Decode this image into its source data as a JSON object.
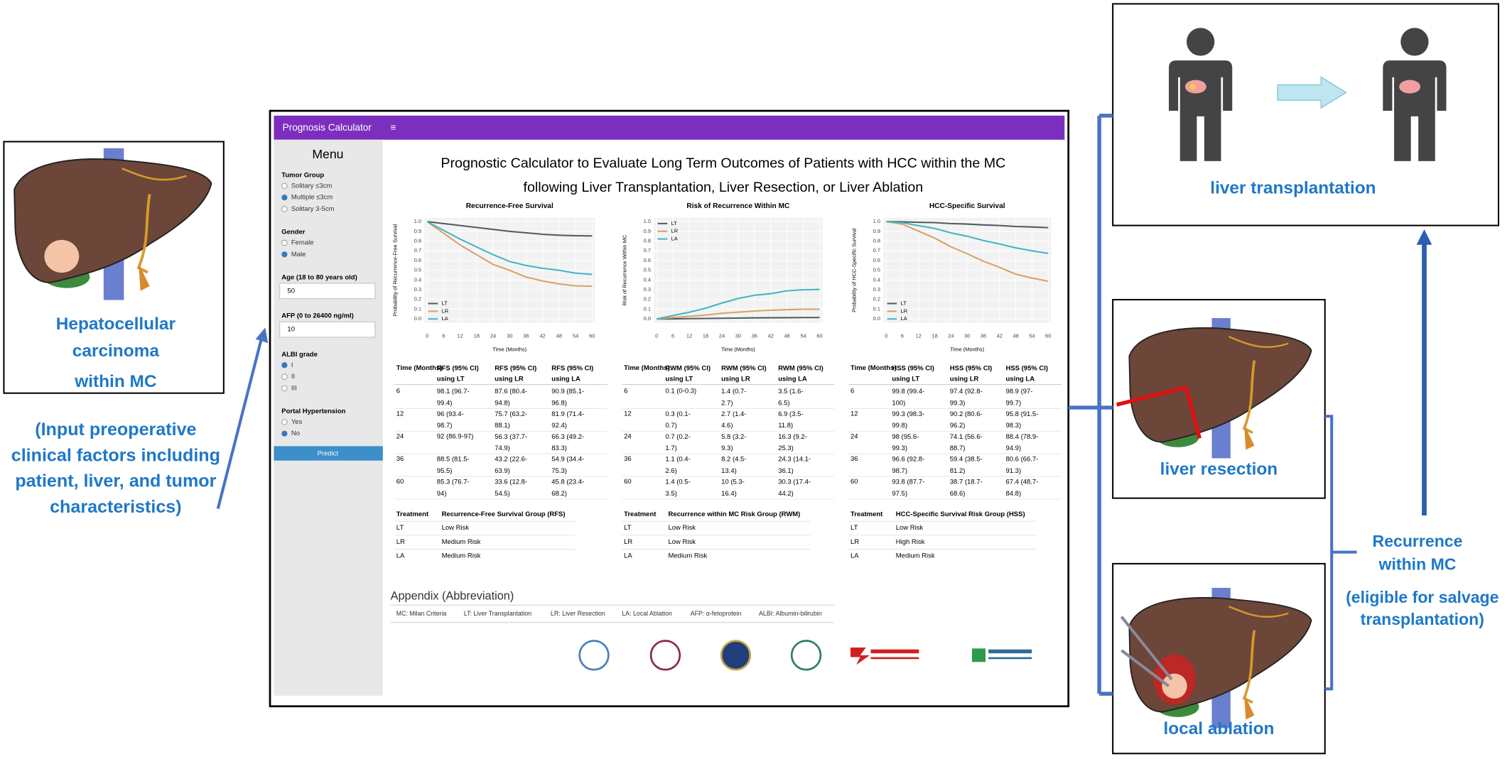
{
  "left_panel": {
    "caption": [
      "Hepatocellular",
      "carcinoma",
      "within MC"
    ],
    "note": [
      "(Input preoperative",
      "clinical factors including",
      "patient, liver, and tumor",
      "characteristics)"
    ]
  },
  "app": {
    "brand": "Prognosis Calculator",
    "menu_icon": "≡",
    "sidebar": {
      "menu": "Menu",
      "fields": [
        {
          "label": "Tumor Group",
          "options": [
            "Solitary ≤3cm",
            "Multiple ≤3cm",
            "Solitary 3-5cm"
          ],
          "selected": 1
        },
        {
          "label": "Gender",
          "options": [
            "Female",
            "Male"
          ],
          "selected": 1
        },
        {
          "label": "Age (18 to 80 years old)",
          "value": "50"
        },
        {
          "label": "AFP (0 to 26400 ng/ml)",
          "value": "10"
        },
        {
          "label": "ALBI grade",
          "options": [
            "I",
            "II",
            "III"
          ],
          "selected": 0
        },
        {
          "label": "Portal Hypertension",
          "options": [
            "Yes",
            "No"
          ],
          "selected": 1
        }
      ],
      "button": "Predict"
    },
    "title": [
      "Prognostic Calculator to Evaluate Long Term Outcomes of Patients with HCC within the MC",
      "following Liver Transplantation, Liver Resection, or Liver Ablation"
    ],
    "tables": [
      {
        "header": [
          "Time (Months)",
          "RFS (95% CI) using LT",
          "RFS (95% CI) using LR",
          "RFS (95% CI) using LA"
        ],
        "rows": [
          [
            "6",
            "98.1 (96.7-99.4)",
            "87.6 (80.4-94.8)",
            "90.9 (85.1-96.8)"
          ],
          [
            "12",
            "96 (93.4-98.7)",
            "75.7 (63.2-88.1)",
            "81.9 (71.4-92.4)"
          ],
          [
            "24",
            "92 (86.9-97)",
            "56.3 (37.7-74.9)",
            "66.3 (49.2-83.3)"
          ],
          [
            "36",
            "88.5 (81.5-95.5)",
            "43.2 (22.6-63.9)",
            "54.9 (34.4-75.3)"
          ],
          [
            "60",
            "85.3 (76.7-94)",
            "33.6 (12.8-54.5)",
            "45.8 (23.4-68.2)"
          ]
        ]
      },
      {
        "header": [
          "Time (Months)",
          "RWM (95% CI) using LT",
          "RWM (95% CI) using LR",
          "RWM (95% CI) using LA"
        ],
        "rows": [
          [
            "6",
            "0.1 (0-0.3)",
            "1.4 (0.7-2.7)",
            "3.5 (1.6-6.5)"
          ],
          [
            "12",
            "0.3 (0.1-0.7)",
            "2.7 (1.4-4.6)",
            "6.9 (3.5-11.8)"
          ],
          [
            "24",
            "0.7 (0.2-1.7)",
            "5.8 (3.2-9.3)",
            "16.3 (9.2-25.3)"
          ],
          [
            "36",
            "1.1 (0.4-2.6)",
            "8.2 (4.5-13.4)",
            "24.3 (14.1-36.1)"
          ],
          [
            "60",
            "1.4 (0.5-3.5)",
            "10 (5.3-16.4)",
            "30.3 (17.4-44.2)"
          ]
        ]
      },
      {
        "header": [
          "Time (Months)",
          "HSS (95% CI) using LT",
          "HSS (95% CI) using LR",
          "HSS (95% CI) using LA"
        ],
        "rows": [
          [
            "6",
            "99.8 (99.4-100)",
            "97.4 (92.8-99.3)",
            "98.9 (97-99.7)"
          ],
          [
            "12",
            "99.3 (98.3-99.8)",
            "90.2 (80.6-96.2)",
            "95.8 (91.5-98.3)"
          ],
          [
            "24",
            "98 (95.6-99.3)",
            "74.1 (56.6-88.7)",
            "88.4 (78.9-94.9)"
          ],
          [
            "36",
            "96.6 (92.8-98.7)",
            "59.4 (38.5-81.2)",
            "80.6 (66.7-91.3)"
          ],
          [
            "60",
            "93.8 (87.7-97.5)",
            "38.7 (18.7-68.6)",
            "67.4 (48.7-84.8)"
          ]
        ]
      }
    ],
    "risk_tables": [
      {
        "header": [
          "Treatment",
          "Recurrence-Free Survival Group (RFS)"
        ],
        "rows": [
          [
            "LT",
            "Low Risk"
          ],
          [
            "LR",
            "Medium Risk"
          ],
          [
            "LA",
            "Medium Risk"
          ]
        ]
      },
      {
        "header": [
          "Treatment",
          "Recurrence within MC Risk Group (RWM)"
        ],
        "rows": [
          [
            "LT",
            "Low Risk"
          ],
          [
            "LR",
            "Low Risk"
          ],
          [
            "LA",
            "Medium Risk"
          ]
        ]
      },
      {
        "header": [
          "Treatment",
          "HCC-Specific Survival Risk Group (HSS)"
        ],
        "rows": [
          [
            "LT",
            "Low Risk"
          ],
          [
            "LR",
            "High Risk"
          ],
          [
            "LA",
            "Medium Risk"
          ]
        ]
      }
    ],
    "appendix": {
      "title": "Appendix (Abbreviation)",
      "items": [
        "MC: Milan Criteria",
        "LT: Liver Transplantation",
        "LR: Liver Resection",
        "LA: Local Ablation",
        "AFP: α-fetoprotein",
        "ALBI: Albumin-bilirubin"
      ]
    }
  },
  "chart_data": [
    {
      "type": "line",
      "title": "Recurrence-Free Survival",
      "x_label": "Time (Months)",
      "y_label": "Probability of Recurrence-Free Survival",
      "legend": "lower left",
      "x": [
        0,
        6,
        12,
        18,
        24,
        30,
        36,
        42,
        48,
        54,
        60
      ],
      "xlim": [
        0,
        60
      ],
      "xticks": [
        0,
        6,
        12,
        18,
        24,
        30,
        36,
        42,
        48,
        54,
        60
      ],
      "ylim": [
        0,
        1
      ],
      "yticks": [
        {
          "value": 0,
          "label": "0.0"
        },
        {
          "value": 0.1,
          "label": "0.1"
        },
        {
          "value": 0.2,
          "label": "0.2"
        },
        {
          "value": 0.3,
          "label": "0.3"
        },
        {
          "value": 0.4,
          "label": "0.4"
        },
        {
          "value": 0.5,
          "label": "0.5"
        },
        {
          "value": 0.6,
          "label": "0.6"
        },
        {
          "value": 0.7,
          "label": "0.7"
        },
        {
          "value": 0.8,
          "label": "0.8"
        },
        {
          "value": 0.9,
          "label": "0.9"
        },
        {
          "value": 1,
          "label": "1.0"
        }
      ],
      "series": [
        {
          "name": "LT",
          "color": "#4d5c5c",
          "values": [
            1,
            0.98,
            0.96,
            0.94,
            0.92,
            0.9,
            0.885,
            0.87,
            0.86,
            0.855,
            0.853
          ]
        },
        {
          "name": "LR",
          "color": "#d9a066",
          "values": [
            1,
            0.88,
            0.76,
            0.66,
            0.56,
            0.5,
            0.43,
            0.39,
            0.36,
            0.34,
            0.336
          ]
        },
        {
          "name": "LA",
          "color": "#3fb6c6",
          "values": [
            1,
            0.91,
            0.82,
            0.74,
            0.66,
            0.59,
            0.55,
            0.52,
            0.5,
            0.47,
            0.458
          ]
        }
      ]
    },
    {
      "type": "line",
      "title": "Risk of Recurrence Within MC",
      "x_label": "Time (Months)",
      "y_label": "Risk of Recurrence Within MC",
      "legend": "upper left",
      "x": [
        0,
        6,
        12,
        18,
        24,
        30,
        36,
        42,
        48,
        54,
        60
      ],
      "xlim": [
        0,
        60
      ],
      "xticks": [
        0,
        6,
        12,
        18,
        24,
        30,
        36,
        42,
        48,
        54,
        60
      ],
      "ylim": [
        0,
        1
      ],
      "yticks": [
        {
          "value": 0,
          "label": "0.0"
        },
        {
          "value": 0.1,
          "label": "0.1"
        },
        {
          "value": 0.2,
          "label": "0.2"
        },
        {
          "value": 0.3,
          "label": "0.3"
        },
        {
          "value": 0.4,
          "label": "0.4"
        },
        {
          "value": 0.5,
          "label": "0.5"
        },
        {
          "value": 0.6,
          "label": "0.6"
        },
        {
          "value": 0.7,
          "label": "0.7"
        },
        {
          "value": 0.8,
          "label": "0.8"
        },
        {
          "value": 0.9,
          "label": "0.9"
        },
        {
          "value": 1,
          "label": "1.0"
        }
      ],
      "series": [
        {
          "name": "LT",
          "color": "#4d5c5c",
          "values": [
            0,
            0.001,
            0.003,
            0.005,
            0.007,
            0.009,
            0.011,
            0.012,
            0.013,
            0.014,
            0.014
          ]
        },
        {
          "name": "LR",
          "color": "#d9a066",
          "values": [
            0,
            0.014,
            0.027,
            0.04,
            0.058,
            0.07,
            0.082,
            0.09,
            0.095,
            0.1,
            0.1
          ]
        },
        {
          "name": "LA",
          "color": "#3fb6c6",
          "values": [
            0,
            0.035,
            0.069,
            0.11,
            0.163,
            0.21,
            0.243,
            0.26,
            0.29,
            0.3,
            0.303
          ]
        }
      ]
    },
    {
      "type": "line",
      "title": "HCC-Specific Survival",
      "x_label": "Time (Months)",
      "y_label": "Probability of HCC-Specific Survival",
      "legend": "lower left",
      "x": [
        0,
        6,
        12,
        18,
        24,
        30,
        36,
        42,
        48,
        54,
        60
      ],
      "xlim": [
        0,
        60
      ],
      "xticks": [
        0,
        6,
        12,
        18,
        24,
        30,
        36,
        42,
        48,
        54,
        60
      ],
      "ylim": [
        0,
        1
      ],
      "yticks": [
        {
          "value": 0,
          "label": "0.0"
        },
        {
          "value": 0.1,
          "label": "0.1"
        },
        {
          "value": 0.2,
          "label": "0.2"
        },
        {
          "value": 0.3,
          "label": "0.3"
        },
        {
          "value": 0.4,
          "label": "0.4"
        },
        {
          "value": 0.5,
          "label": "0.5"
        },
        {
          "value": 0.6,
          "label": "0.6"
        },
        {
          "value": 0.7,
          "label": "0.7"
        },
        {
          "value": 0.8,
          "label": "0.8"
        },
        {
          "value": 0.9,
          "label": "0.9"
        },
        {
          "value": 1,
          "label": "1.0"
        }
      ],
      "series": [
        {
          "name": "LT",
          "color": "#4d5c5c",
          "values": [
            1,
            0.998,
            0.993,
            0.99,
            0.98,
            0.975,
            0.966,
            0.96,
            0.95,
            0.945,
            0.938
          ]
        },
        {
          "name": "LR",
          "color": "#d9a066",
          "values": [
            1,
            0.974,
            0.902,
            0.83,
            0.741,
            0.67,
            0.594,
            0.53,
            0.46,
            0.42,
            0.387
          ]
        },
        {
          "name": "LA",
          "color": "#3fb6c6",
          "values": [
            1,
            0.989,
            0.958,
            0.93,
            0.884,
            0.85,
            0.806,
            0.77,
            0.73,
            0.7,
            0.674
          ]
        }
      ]
    }
  ],
  "right_panel": {
    "transplantation": "liver transplantation",
    "resection": "liver resection",
    "ablation": "local ablation",
    "recurrence": [
      "Recurrence",
      "within MC",
      "(eligible for salvage",
      "transplantation)"
    ]
  }
}
